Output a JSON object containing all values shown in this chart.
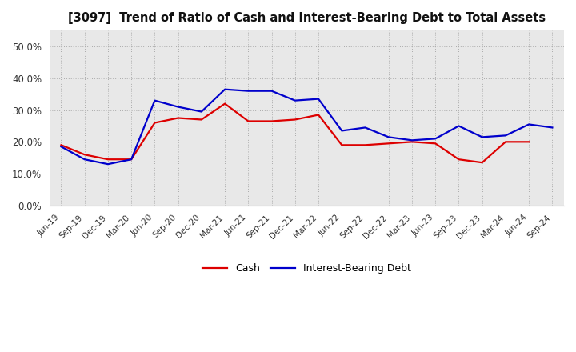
{
  "title": "[3097]  Trend of Ratio of Cash and Interest-Bearing Debt to Total Assets",
  "labels": [
    "Jun-19",
    "Sep-19",
    "Dec-19",
    "Mar-20",
    "Jun-20",
    "Sep-20",
    "Dec-20",
    "Mar-21",
    "Jun-21",
    "Sep-21",
    "Dec-21",
    "Mar-22",
    "Jun-22",
    "Sep-22",
    "Dec-22",
    "Mar-23",
    "Jun-23",
    "Sep-23",
    "Dec-23",
    "Mar-24",
    "Jun-24",
    "Sep-24"
  ],
  "cash": [
    0.19,
    0.16,
    0.145,
    0.145,
    0.26,
    0.275,
    0.27,
    0.32,
    0.265,
    0.265,
    0.27,
    0.285,
    0.19,
    0.19,
    0.195,
    0.2,
    0.195,
    0.145,
    0.135,
    0.2,
    0.2,
    null
  ],
  "ibd": [
    0.185,
    0.145,
    0.13,
    0.145,
    0.33,
    0.31,
    0.295,
    0.365,
    0.36,
    0.36,
    0.33,
    0.335,
    0.235,
    0.245,
    0.215,
    0.205,
    0.21,
    0.25,
    0.215,
    0.22,
    0.255,
    0.245
  ],
  "cash_color": "#dd0000",
  "ibd_color": "#0000cc",
  "ylim": [
    0.0,
    0.55
  ],
  "yticks": [
    0.0,
    0.1,
    0.2,
    0.3,
    0.4,
    0.5
  ],
  "background_color": "#ffffff",
  "plot_bg_color": "#e8e8e8",
  "grid_color": "#aaaaaa",
  "legend_cash": "Cash",
  "legend_ibd": "Interest-Bearing Debt",
  "line_width": 1.6
}
